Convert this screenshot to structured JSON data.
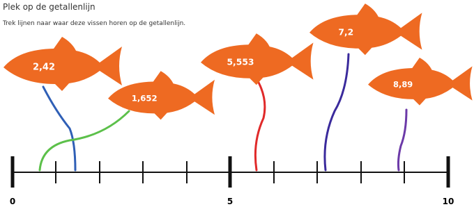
{
  "header": {
    "title": "Plek op de getallenlijn",
    "instruction": "Trek lijnen naar waar deze vissen horen op de getallenlijn."
  },
  "fish": [
    {
      "label": "2,42"
    },
    {
      "label": "1,652"
    },
    {
      "label": "5,553"
    },
    {
      "label": "7,2"
    },
    {
      "label": "8,89"
    }
  ],
  "number_line": {
    "labels": [
      "0",
      "5",
      "10"
    ]
  }
}
